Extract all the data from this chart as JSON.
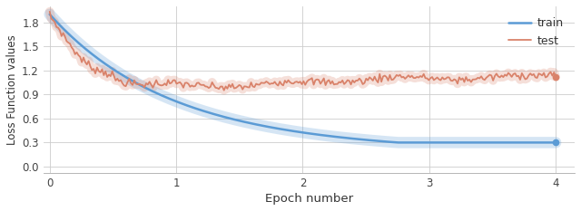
{
  "title": "",
  "xlabel": "Epoch number",
  "ylabel": "Loss Function values",
  "xlim": [
    -0.05,
    4.15
  ],
  "ylim": [
    -0.08,
    2.0
  ],
  "xticks": [
    0,
    1,
    2,
    3,
    4
  ],
  "yticks": [
    0,
    0.3,
    0.6,
    0.9,
    1.2,
    1.5,
    1.8
  ],
  "train_color": "#5b9bd5",
  "test_color": "#d9826a",
  "train_shadow_alpha": 0.25,
  "test_shadow_alpha": 0.25,
  "legend_loc": "upper right",
  "figsize": [
    6.4,
    2.33
  ],
  "dpi": 100,
  "grid_color": "#cccccc",
  "bg_color": "#ffffff"
}
